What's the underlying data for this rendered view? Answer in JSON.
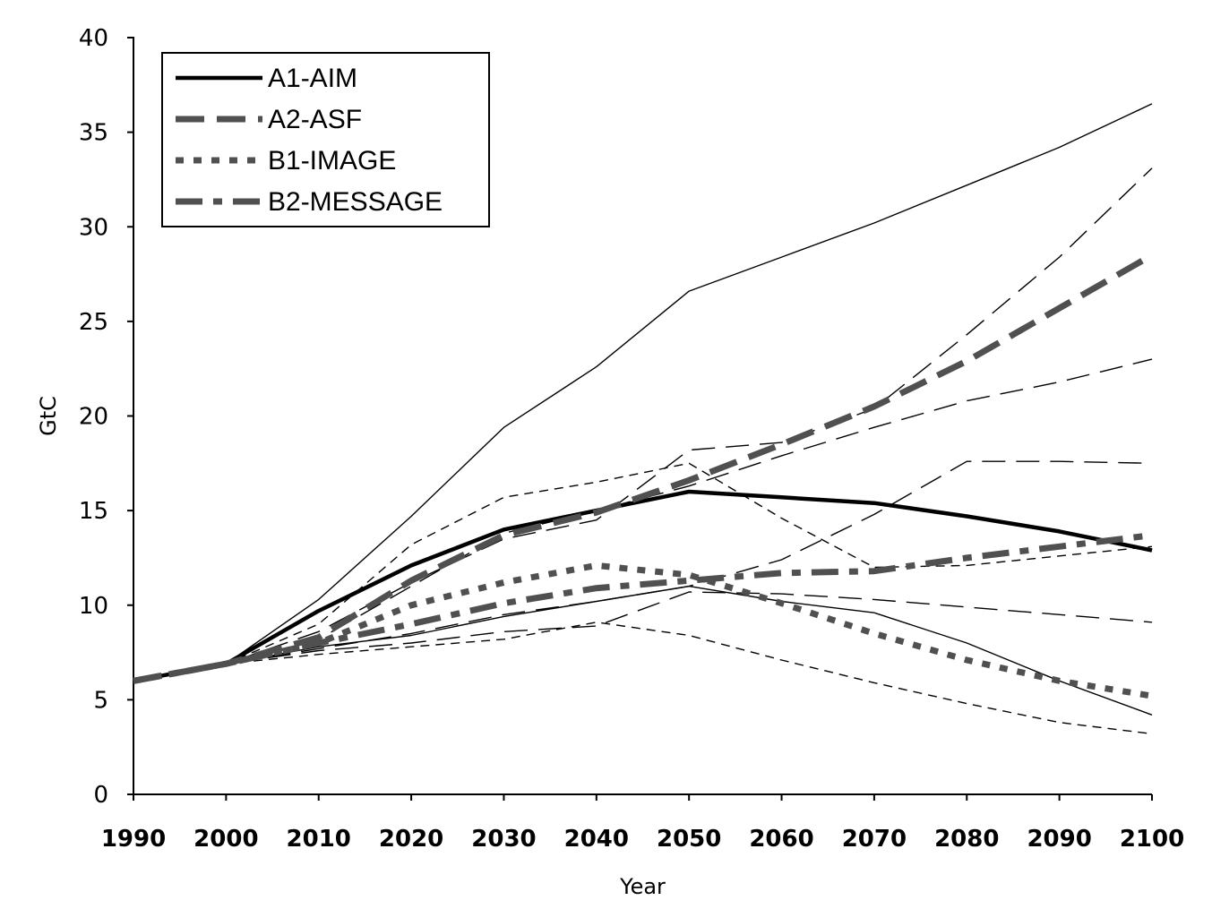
{
  "chart_data": {
    "type": "line",
    "title": "",
    "xlabel": "Year",
    "ylabel": "GtC",
    "xlim": [
      1990,
      2100
    ],
    "ylim": [
      0,
      40
    ],
    "xticks": [
      "1990",
      "2000",
      "2010",
      "2020",
      "2030",
      "2040",
      "2050",
      "2060",
      "2070",
      "2080",
      "2090",
      "2100"
    ],
    "yticks": [
      "0",
      "5",
      "10",
      "15",
      "20",
      "25",
      "30",
      "35",
      "40"
    ],
    "grid": false,
    "legend_position": "top-left",
    "x": [
      1990,
      2000,
      2010,
      2020,
      2030,
      2040,
      2050,
      2060,
      2070,
      2080,
      2090,
      2100
    ],
    "series": [
      {
        "name": "A1-AIM",
        "style": "solid",
        "weight": "heavy",
        "color": "#000000",
        "values": [
          6.0,
          6.9,
          9.7,
          12.1,
          14.0,
          15.0,
          16.0,
          15.7,
          15.4,
          14.7,
          13.9,
          12.9
        ]
      },
      {
        "name": "A2-ASF",
        "style": "long-dash",
        "weight": "heavy",
        "color": "#505050",
        "values": [
          6.0,
          6.9,
          8.3,
          11.3,
          13.7,
          14.9,
          16.6,
          18.5,
          20.5,
          22.9,
          25.7,
          28.5
        ]
      },
      {
        "name": "B1-IMAGE",
        "style": "dotted",
        "weight": "heavy",
        "color": "#505050",
        "values": [
          6.0,
          6.9,
          8.0,
          10.0,
          11.2,
          12.1,
          11.6,
          10.1,
          8.5,
          7.1,
          6.0,
          5.2
        ]
      },
      {
        "name": "B2-MESSAGE",
        "style": "dash-dot",
        "weight": "heavy",
        "color": "#505050",
        "values": [
          6.0,
          6.9,
          8.0,
          9.0,
          10.1,
          10.9,
          11.3,
          11.7,
          11.8,
          12.5,
          13.1,
          13.7
        ]
      },
      {
        "name": "",
        "style": "solid",
        "weight": "thin",
        "color": "#000000",
        "values": [
          6.0,
          6.9,
          10.3,
          14.7,
          19.4,
          22.6,
          26.6,
          28.4,
          30.2,
          32.2,
          34.2,
          36.5
        ]
      },
      {
        "name": "",
        "style": "long-dash",
        "weight": "thin",
        "color": "#000000",
        "values": [
          6.0,
          6.9,
          7.7,
          8.5,
          9.5,
          10.2,
          11.0,
          12.4,
          14.8,
          17.6,
          17.6,
          17.5
        ]
      },
      {
        "name": "",
        "style": "long-dash",
        "weight": "thin",
        "color": "#000000",
        "values": [
          6.0,
          6.9,
          8.6,
          11.2,
          13.5,
          14.5,
          18.2,
          18.6,
          20.4,
          24.3,
          28.4,
          33.1
        ]
      },
      {
        "name": "",
        "style": "long-dash",
        "weight": "thin",
        "color": "#000000",
        "values": [
          6.0,
          6.9,
          8.2,
          11.0,
          13.8,
          15.0,
          16.3,
          17.9,
          19.4,
          20.8,
          21.8,
          23.0
        ]
      },
      {
        "name": "",
        "style": "dashed",
        "weight": "thin",
        "color": "#000000",
        "values": [
          6.0,
          6.9,
          9.0,
          13.2,
          15.7,
          16.5,
          17.5,
          14.6,
          12.0,
          12.1,
          12.6,
          13.1
        ]
      },
      {
        "name": "",
        "style": "solid",
        "weight": "thin",
        "color": "#000000",
        "values": [
          6.0,
          6.9,
          7.8,
          8.4,
          9.4,
          10.2,
          11.0,
          10.2,
          9.6,
          8.0,
          6.0,
          4.2
        ]
      },
      {
        "name": "",
        "style": "dashed",
        "weight": "thin",
        "color": "#000000",
        "values": [
          6.0,
          6.9,
          7.4,
          7.8,
          8.2,
          9.1,
          8.4,
          7.1,
          5.9,
          4.8,
          3.8,
          3.2
        ]
      },
      {
        "name": "",
        "style": "long-dash",
        "weight": "thin",
        "color": "#000000",
        "values": [
          6.0,
          6.9,
          7.6,
          8.0,
          8.6,
          8.9,
          10.7,
          10.6,
          10.3,
          9.9,
          9.5,
          9.1
        ]
      }
    ]
  }
}
